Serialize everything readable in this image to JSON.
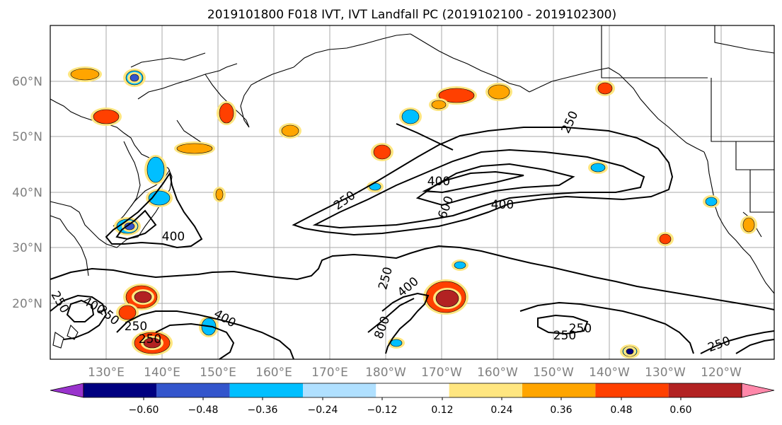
{
  "title": "2019101800 F018 IVT, IVT Landfall PC (2019102100 - 2019102300)",
  "map": {
    "lon_ticks": [
      "130°E",
      "140°E",
      "150°E",
      "160°E",
      "170°E",
      "180°W",
      "170°W",
      "160°W",
      "150°W",
      "140°W",
      "130°W",
      "120°W"
    ],
    "lat_ticks": [
      "20°N",
      "30°N",
      "40°N",
      "50°N",
      "60°N"
    ],
    "contour_labels": [
      "250",
      "250",
      "250",
      "250",
      "250",
      "250",
      "250",
      "250",
      "400",
      "400",
      "400",
      "400",
      "400",
      "400",
      "600",
      "800",
      "250",
      "250"
    ],
    "colors": {
      "land_line": "#000000",
      "grid": "#a0a0a0",
      "contour": "#000000"
    }
  },
  "colorbar": {
    "ticks": [
      "−0.60",
      "−0.48",
      "−0.36",
      "−0.24",
      "−0.12",
      "0.12",
      "0.24",
      "0.36",
      "0.48",
      "0.60"
    ],
    "colors": [
      "#9933cc",
      "#000080",
      "#3355cc",
      "#00bfff",
      "#b0e0ff",
      "#ffffff",
      "#ffe680",
      "#ffa500",
      "#ff4000",
      "#b22222",
      "#ff88aa"
    ]
  }
}
